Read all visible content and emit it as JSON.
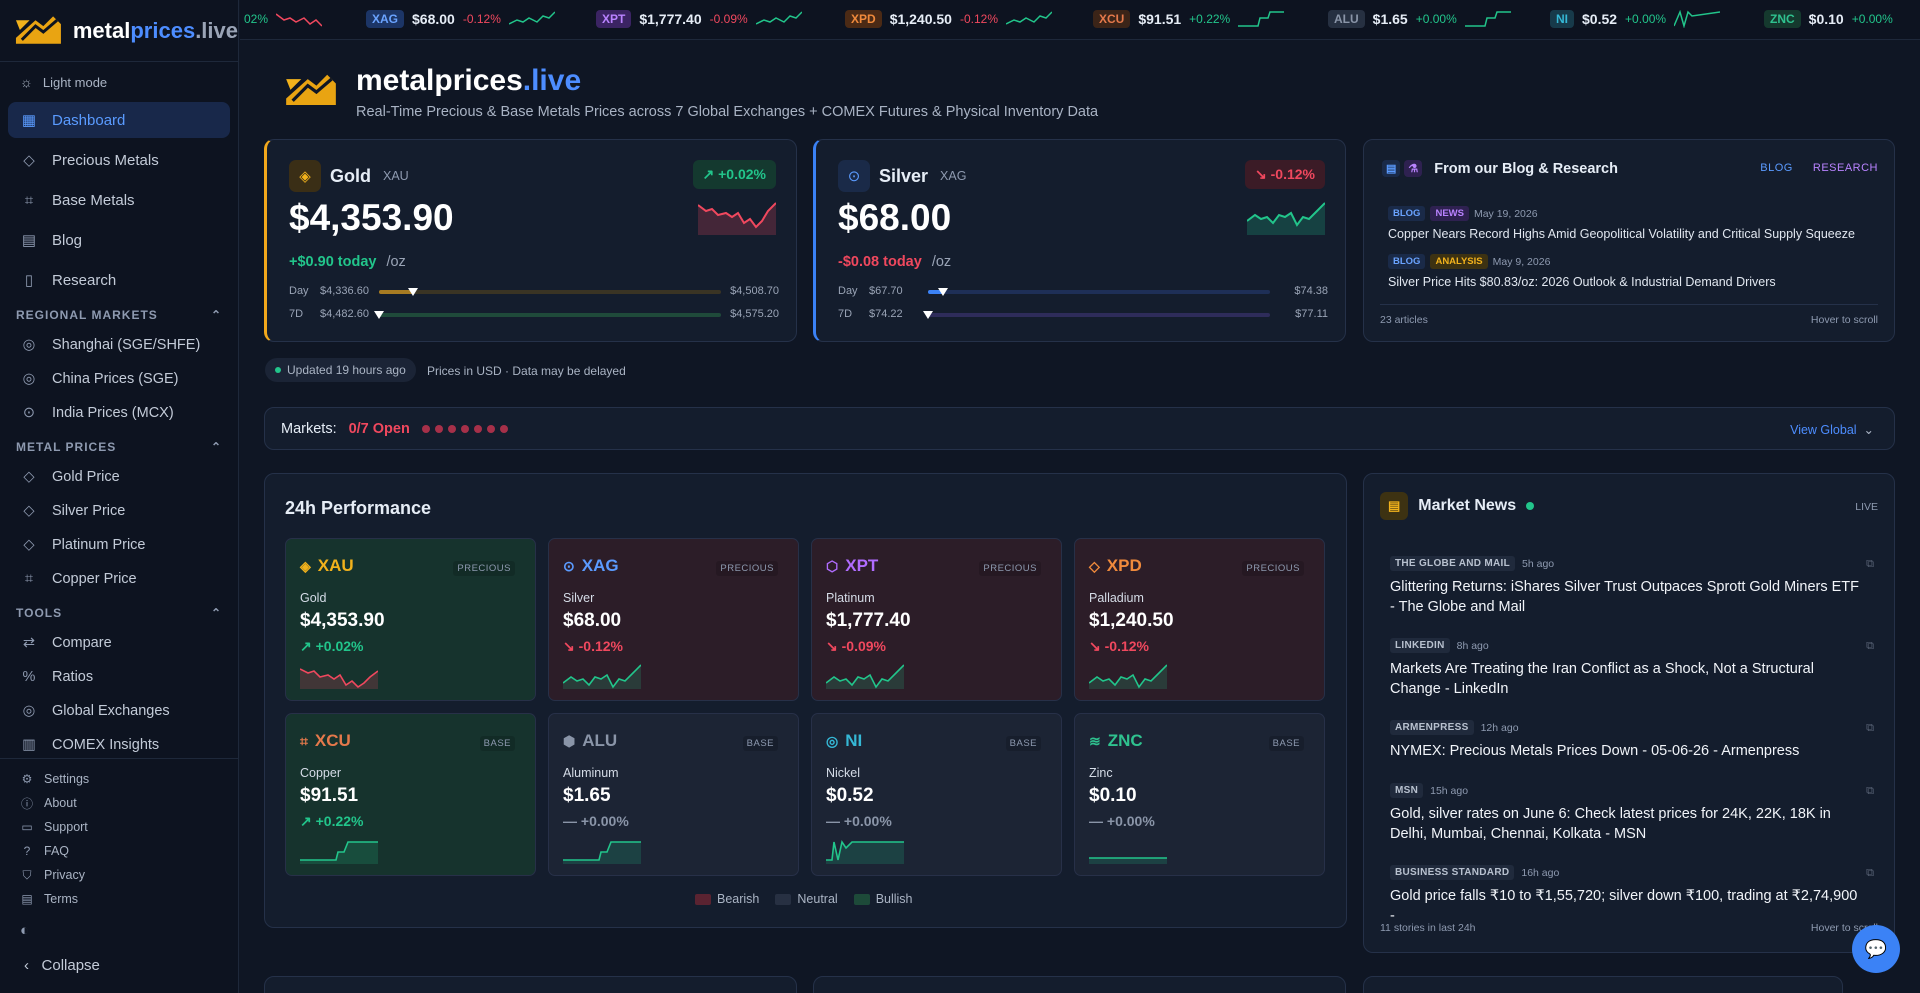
{
  "brand": {
    "name_a": "metal",
    "name_b": "prices",
    "name_c": ".live"
  },
  "ticker": [
    {
      "sym": "",
      "price": "",
      "change": "02%",
      "dir": "down",
      "bg": "",
      "fg": "#22c58b"
    },
    {
      "sym": "XAG",
      "price": "$68.00",
      "change": "-0.12%",
      "dir": "down",
      "bg": "#1c3566",
      "fg": "#6aa3ff"
    },
    {
      "sym": "XPT",
      "price": "$1,777.40",
      "change": "-0.09%",
      "dir": "down",
      "bg": "#3b2463",
      "fg": "#b983ff"
    },
    {
      "sym": "XPD",
      "price": "$1,240.50",
      "change": "-0.12%",
      "dir": "down",
      "bg": "#4b2a15",
      "fg": "#f08a3c"
    },
    {
      "sym": "XCU",
      "price": "$91.51",
      "change": "+0.22%",
      "dir": "up",
      "bg": "#3b2418",
      "fg": "#e5794b"
    },
    {
      "sym": "ALU",
      "price": "$1.65",
      "change": "+0.00%",
      "dir": "up",
      "bg": "#263041",
      "fg": "#8a95a8"
    },
    {
      "sym": "NI",
      "price": "$0.52",
      "change": "+0.00%",
      "dir": "up",
      "bg": "#173a4a",
      "fg": "#35b8d6"
    },
    {
      "sym": "ZNC",
      "price": "$0.10",
      "change": "+0.00%",
      "dir": "up",
      "bg": "#15392e",
      "fg": "#2fc28f"
    }
  ],
  "sidebar": {
    "light_mode": "Light mode",
    "main": [
      "Dashboard",
      "Precious Metals",
      "Base Metals",
      "Blog",
      "Research"
    ],
    "regional_title": "REGIONAL MARKETS",
    "regional": [
      "Shanghai (SGE/SHFE)",
      "China Prices (SGE)",
      "India Prices (MCX)"
    ],
    "metal_title": "METAL PRICES",
    "metal": [
      "Gold Price",
      "Silver Price",
      "Platinum Price",
      "Copper Price"
    ],
    "tools_title": "TOOLS",
    "tools": [
      "Compare",
      "Ratios",
      "Global Exchanges",
      "COMEX Insights"
    ],
    "footer": [
      "Settings",
      "About",
      "Support",
      "FAQ",
      "Privacy",
      "Terms"
    ],
    "collapse": "Collapse"
  },
  "header": {
    "title_a": "metalprices",
    "title_b": ".live",
    "subtitle": "Real-Time Precious & Base Metals Prices across 7 Global Exchanges + COMEX Futures & Physical Inventory Data"
  },
  "gold": {
    "name": "Gold",
    "sym": "XAU",
    "badge": "+0.02%",
    "price": "$4,353.90",
    "today": "+$0.90 today",
    "unit": "/oz",
    "day_label": "Day",
    "day_lo": "$4,336.60",
    "day_hi": "$4,508.70",
    "day_pos": 0.1,
    "wk_label": "7D",
    "wk_lo": "$4,482.60",
    "wk_hi": "$4,575.20",
    "wk_pos": 0.0
  },
  "silver": {
    "name": "Silver",
    "sym": "XAG",
    "badge": "-0.12%",
    "price": "$68.00",
    "today": "-$0.08 today",
    "unit": "/oz",
    "day_label": "Day",
    "day_lo": "$67.70",
    "day_hi": "$74.38",
    "day_pos": 0.045,
    "wk_label": "7D",
    "wk_lo": "$74.22",
    "wk_hi": "$77.11",
    "wk_pos": 0.0
  },
  "blog": {
    "title": "From our Blog & Research",
    "tab1": "BLOG",
    "tab2": "RESEARCH",
    "posts": [
      {
        "type": "BLOG",
        "cat": "NEWS",
        "date": "May 19, 2026",
        "title": "Copper Nears Record Highs Amid Geopolitical Volatility and Critical Supply Squeeze"
      },
      {
        "type": "BLOG",
        "cat": "ANALYSIS",
        "date": "May 9, 2026",
        "title": "Silver Price Hits $80.83/oz: 2026 Outlook & Industrial Demand Drivers"
      }
    ],
    "count": "23 articles",
    "hint": "Hover to scroll"
  },
  "status": {
    "updated": "Updated 19 hours ago",
    "usd": "Prices in USD · Data may be delayed"
  },
  "markets": {
    "label": "Markets:",
    "open": "0/7 Open",
    "view": "View Global"
  },
  "perf": {
    "title": "24h Performance",
    "tiles": [
      {
        "sym": "XAU",
        "cat": "PRECIOUS",
        "name": "Gold",
        "price": "$4,353.90",
        "change": "+0.02%",
        "dir": "up",
        "color": "#f2b21c",
        "icon": "diamond-icon"
      },
      {
        "sym": "XAG",
        "cat": "PRECIOUS",
        "name": "Silver",
        "price": "$68.00",
        "change": "-0.12%",
        "dir": "down",
        "color": "#5b9bff",
        "icon": "circle-dot-icon"
      },
      {
        "sym": "XPT",
        "cat": "PRECIOUS",
        "name": "Platinum",
        "price": "$1,777.40",
        "change": "-0.09%",
        "dir": "down",
        "color": "#b06cff",
        "icon": "hexagon-icon"
      },
      {
        "sym": "XPD",
        "cat": "PRECIOUS",
        "name": "Palladium",
        "price": "$1,240.50",
        "change": "-0.12%",
        "dir": "down",
        "color": "#f08a3c",
        "icon": "diamond-outline-icon"
      },
      {
        "sym": "XCU",
        "cat": "BASE",
        "name": "Copper",
        "price": "$91.51",
        "change": "+0.22%",
        "dir": "up",
        "color": "#e5794b",
        "icon": "pipe-icon"
      },
      {
        "sym": "ALU",
        "cat": "BASE",
        "name": "Aluminum",
        "price": "$1.65",
        "change": "+0.00%",
        "dir": "neu",
        "color": "#8a95a8",
        "icon": "box-icon"
      },
      {
        "sym": "NI",
        "cat": "BASE",
        "name": "Nickel",
        "price": "$0.52",
        "change": "+0.00%",
        "dir": "neu",
        "color": "#35b8d6",
        "icon": "target-icon"
      },
      {
        "sym": "ZNC",
        "cat": "BASE",
        "name": "Zinc",
        "price": "$0.10",
        "change": "+0.00%",
        "dir": "neu",
        "color": "#2fc28f",
        "icon": "layers-icon"
      }
    ],
    "legend": [
      "Bearish",
      "Neutral",
      "Bullish"
    ]
  },
  "news": {
    "title": "Market News",
    "live": "LIVE",
    "items": [
      {
        "src": "THE GLOBE AND MAIL",
        "ago": "5h ago",
        "title": "Glittering Returns: iShares Silver Trust Outpaces Sprott Gold Miners ETF - The Globe and Mail"
      },
      {
        "src": "LINKEDIN",
        "ago": "8h ago",
        "title": "Markets Are Treating the Iran Conflict as a Shock, Not a Structural Change - LinkedIn"
      },
      {
        "src": "ARMENPRESS",
        "ago": "12h ago",
        "title": "NYMEX: Precious Metals Prices Down - 05-06-26 - Armenpress"
      },
      {
        "src": "MSN",
        "ago": "15h ago",
        "title": "Gold, silver rates on June 6: Check latest prices for 24K, 22K, 18K in Delhi, Mumbai, Chennai, Kolkata - MSN"
      },
      {
        "src": "BUSINESS STANDARD",
        "ago": "16h ago",
        "title": "Gold price falls ₹10 to ₹1,55,720; silver down ₹100, trading at ₹2,74,900 -"
      }
    ],
    "count": "11 stories in last 24h",
    "hint": "Hover to scroll"
  }
}
